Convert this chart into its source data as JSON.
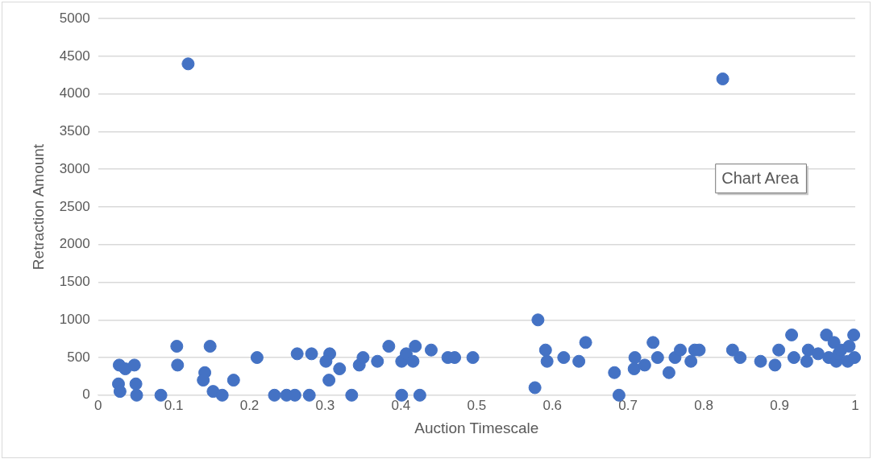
{
  "chart_data": {
    "type": "scatter",
    "xlabel": "Auction Timescale",
    "ylabel": "Retraction Amount",
    "xlim": [
      0,
      1
    ],
    "xticks": [
      0,
      0.1,
      0.2,
      0.3,
      0.4,
      0.5,
      0.6,
      0.7,
      0.8,
      0.9,
      1
    ],
    "ylim": [
      0,
      5000
    ],
    "yticks": [
      0,
      500,
      1000,
      1500,
      2000,
      2500,
      3000,
      3500,
      4000,
      4500,
      5000
    ],
    "grid": "y",
    "legend": false,
    "marker": "circle",
    "annotations": [
      "Chart Area"
    ],
    "series": [
      {
        "color": "#4472c4",
        "x": [
          0.028,
          0.036,
          0.048,
          0.027,
          0.029,
          0.05,
          0.051,
          0.083,
          0.104,
          0.105,
          0.148,
          0.141,
          0.139,
          0.152,
          0.164,
          0.179,
          0.21,
          0.233,
          0.249,
          0.26,
          0.263,
          0.279,
          0.282,
          0.306,
          0.301,
          0.319,
          0.305,
          0.335,
          0.345,
          0.35,
          0.369,
          0.384,
          0.401,
          0.407,
          0.401,
          0.416,
          0.419,
          0.425,
          0.44,
          0.462,
          0.471,
          0.495,
          0.581,
          0.577,
          0.591,
          0.593,
          0.615,
          0.635,
          0.644,
          0.682,
          0.688,
          0.709,
          0.708,
          0.722,
          0.733,
          0.739,
          0.754,
          0.762,
          0.769,
          0.783,
          0.788,
          0.794,
          0.838,
          0.848,
          0.875,
          0.894,
          0.899,
          0.916,
          0.919,
          0.938,
          0.936,
          0.951,
          0.962,
          0.965,
          0.972,
          0.975,
          0.978,
          0.981,
          0.99,
          0.992,
          0.998,
          0.999,
          0.119,
          0.825
        ],
        "values": [
          400,
          350,
          400,
          150,
          50,
          150,
          0,
          0,
          650,
          400,
          650,
          300,
          200,
          50,
          0,
          200,
          500,
          0,
          0,
          0,
          550,
          0,
          550,
          550,
          450,
          350,
          200,
          0,
          400,
          500,
          450,
          650,
          450,
          550,
          0,
          450,
          650,
          0,
          600,
          500,
          500,
          500,
          1000,
          100,
          600,
          450,
          500,
          450,
          700,
          300,
          0,
          500,
          350,
          400,
          700,
          500,
          300,
          500,
          600,
          450,
          600,
          600,
          600,
          500,
          450,
          400,
          600,
          800,
          500,
          600,
          450,
          550,
          800,
          500,
          700,
          450,
          550,
          600,
          450,
          650,
          800,
          500,
          4400,
          4200
        ]
      }
    ]
  }
}
